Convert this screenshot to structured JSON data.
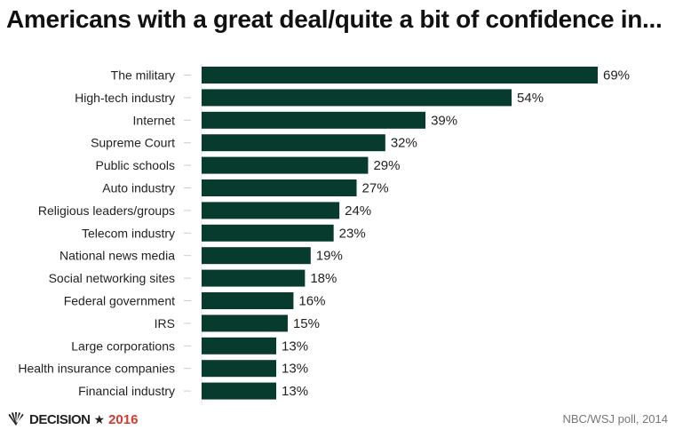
{
  "title": "Americans with a great deal/quite a bit of confidence in...",
  "source": "NBC/WSJ poll, 2014",
  "logo": {
    "text": "DECISION",
    "star": "★",
    "year": "2016",
    "icon": "nbc-peacock-icon"
  },
  "colors": {
    "bar": "#073b2e",
    "tick": "#cccccc",
    "year": "#d43a2f"
  },
  "chart_data": {
    "type": "bar",
    "orientation": "horizontal",
    "categories": [
      "The military",
      "High-tech industry",
      "Internet",
      "Supreme Court",
      "Public schools",
      "Auto industry",
      "Religious leaders/groups",
      "Telecom industry",
      "National news media",
      "Social networking sites",
      "Federal government",
      "IRS",
      "Large corporations",
      "Health insurance companies",
      "Financial industry"
    ],
    "values": [
      69,
      54,
      39,
      32,
      29,
      27,
      24,
      23,
      19,
      18,
      16,
      15,
      13,
      13,
      13
    ],
    "value_labels": [
      "69%",
      "54%",
      "39%",
      "32%",
      "29%",
      "27%",
      "24%",
      "23%",
      "19%",
      "18%",
      "16%",
      "15%",
      "13%",
      "13%",
      "13%"
    ],
    "unit": "%",
    "xlim": [
      0,
      69
    ],
    "grid": false,
    "legend": "none"
  }
}
